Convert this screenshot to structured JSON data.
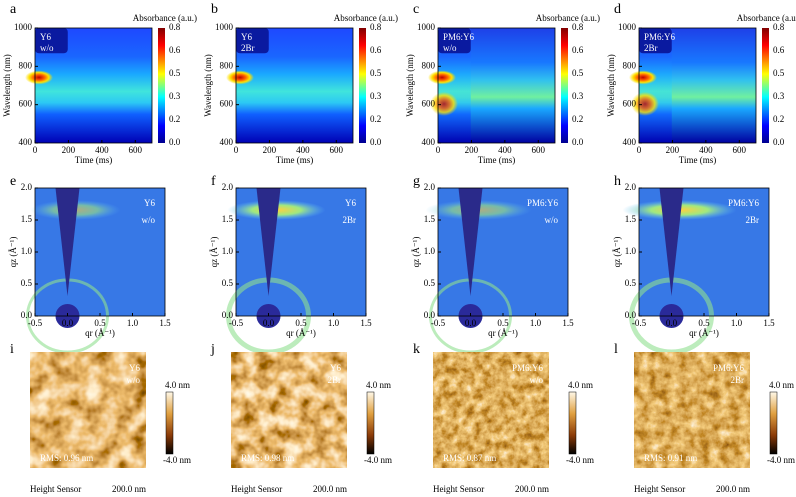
{
  "rows": [
    {
      "panels": [
        {
          "letter": "a",
          "label": [
            "Y6",
            "w/o"
          ]
        },
        {
          "letter": "b",
          "label": [
            "Y6",
            "2Br"
          ]
        },
        {
          "letter": "c",
          "label": [
            "PM6:Y6",
            "w/o"
          ]
        },
        {
          "letter": "d",
          "label": [
            "PM6:Y6",
            "2Br"
          ]
        }
      ],
      "colorbar_title": "Absorbance (a.u.)",
      "y_label": "Wavelength (nm)",
      "x_label": "Time (ms)",
      "yticks": [
        "400",
        "600",
        "800",
        "1000"
      ],
      "xticks": [
        "0",
        "200",
        "400",
        "600"
      ],
      "cticks": [
        "0.0",
        "0.2",
        "0.3",
        "0.5",
        "0.6",
        "0.8"
      ]
    },
    {
      "panels": [
        {
          "letter": "e",
          "label": [
            "Y6",
            "w/o"
          ]
        },
        {
          "letter": "f",
          "label": [
            "Y6",
            "2Br"
          ]
        },
        {
          "letter": "g",
          "label": [
            "PM6:Y6",
            "w/o"
          ]
        },
        {
          "letter": "h",
          "label": [
            "PM6:Y6",
            "2Br"
          ]
        }
      ],
      "y_label": "qz (Å⁻¹)",
      "x_label": "qr (Å⁻¹)",
      "yticks": [
        "0.0",
        "0.5",
        "1.0",
        "1.5",
        "2.0"
      ],
      "xticks": [
        "-0.5",
        "0.0",
        "0.5",
        "1.0",
        "1.5"
      ]
    },
    {
      "panels": [
        {
          "letter": "i",
          "label": [
            "Y6",
            "w/o"
          ],
          "rms": "RMS: 0.96 nm"
        },
        {
          "letter": "j",
          "label": [
            "Y6",
            "2Br"
          ],
          "rms": "RMS: 0.98 nm"
        },
        {
          "letter": "k",
          "label": [
            "PM6:Y6",
            "w/o"
          ],
          "rms": "RMS: 0.87 nm"
        },
        {
          "letter": "l",
          "label": [
            "PM6:Y6",
            "2Br"
          ],
          "rms": "RMS: 0.91 nm"
        }
      ],
      "scale_max": "4.0 nm",
      "scale_min": "-4.0 nm",
      "footer_left": "Height Sensor",
      "footer_right": "200.0 nm"
    }
  ]
}
